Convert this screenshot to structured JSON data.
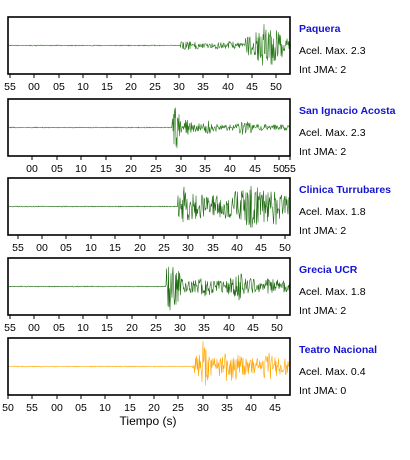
{
  "chart_data": {
    "type": "line",
    "xlabel": "Tiempo (s)",
    "grid": false,
    "panels": [
      {
        "station": "Paquera",
        "accel_text": "Acel. Max. 2.3",
        "jma_text": "Int JMA: 2",
        "color": "#2a7a1a",
        "tick_labels": [
          "55",
          "00",
          "05",
          "10",
          "15",
          "20",
          "25",
          "30",
          "35",
          "40",
          "45",
          "50"
        ],
        "xlim": [
          53.5,
          54.5
        ],
        "x_range_labels": [
          "55",
          "50"
        ],
        "onset": 30.0,
        "peak_center": 49.5,
        "peak_accel": 2.3,
        "waveform_shape": "low-amplitude arrival at 30, strong burst near 47-50"
      },
      {
        "station": "San Ignacio Acosta",
        "accel_text": "Acel. Max. 2.3",
        "jma_text": "Int JMA: 2",
        "color": "#2a7a1a",
        "tick_labels": [
          "00",
          "05",
          "10",
          "15",
          "20",
          "25",
          "30",
          "35",
          "40",
          "45",
          "50",
          "55"
        ],
        "onset": 31.0,
        "peak_center": 31.5,
        "peak_accel": 2.3,
        "waveform_shape": "sharp spike at 31, then moderate packets at 35 and 45"
      },
      {
        "station": "Clinica Turrubares",
        "accel_text": "Acel. Max. 1.8",
        "jma_text": "Int JMA: 2",
        "color": "#1e6a10",
        "tick_labels": [
          "55",
          "00",
          "05",
          "10",
          "15",
          "20",
          "25",
          "30",
          "35",
          "40",
          "45",
          "50"
        ],
        "onset": 29.5,
        "peak_center": 45.0,
        "peak_accel": 1.8,
        "waveform_shape": "strong sustained shaking from 29.5 to end"
      },
      {
        "station": "Grecia UCR",
        "accel_text": "Acel. Max. 1.8",
        "jma_text": "Int JMA: 2",
        "color": "#1e6a10",
        "tick_labels": [
          "55",
          "00",
          "05",
          "10",
          "15",
          "20",
          "25",
          "30",
          "35",
          "40",
          "45",
          "50"
        ],
        "onset": 28.0,
        "peak_center": 30.0,
        "peak_accel": 1.8,
        "waveform_shape": "strong onset at 28, decaying with bursts near 36 and 45"
      },
      {
        "station": "Teatro Nacional",
        "accel_text": "Acel. Max. 0.4",
        "jma_text": "Int JMA: 0",
        "color": "#ffa500",
        "tick_labels": [
          "50",
          "55",
          "00",
          "05",
          "10",
          "15",
          "20",
          "25",
          "30",
          "35",
          "40",
          "45"
        ],
        "onset": 30.5,
        "peak_center": 31.5,
        "peak_accel": 0.4,
        "waveform_shape": "arrival at 30.5 with peak at 31-32, moderate coda"
      }
    ]
  }
}
